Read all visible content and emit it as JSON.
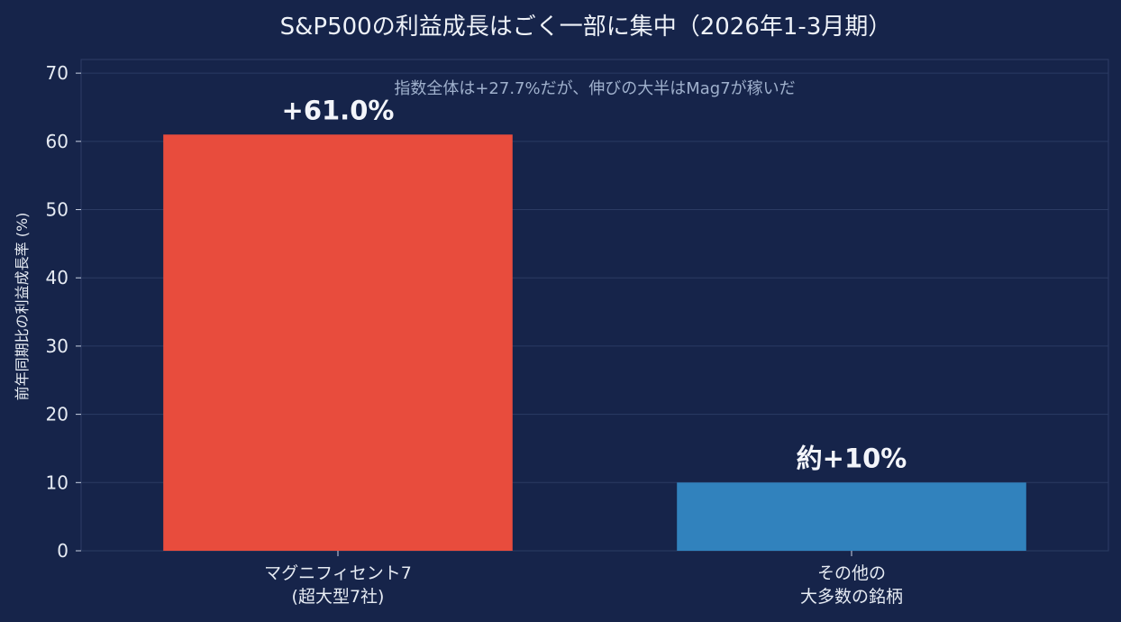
{
  "chart_data": {
    "type": "bar",
    "title": "S&P500の利益成長はごく一部に集中（2026年1-3月期）",
    "subtitle": "指数全体は+27.7%だが、伸びの大半はMag7が稼いだ",
    "ylabel": "前年同期比の利益成長率 (%)",
    "xlabel": "",
    "ylim": [
      0,
      72
    ],
    "yticks": [
      0,
      10,
      20,
      30,
      40,
      50,
      60,
      70
    ],
    "grid": true,
    "categories": [
      [
        "マグニフィセント7",
        "(超大型7社)"
      ],
      [
        "その他の",
        "大多数の銘柄"
      ]
    ],
    "values": [
      61.0,
      10
    ],
    "data_labels": [
      "+61.0%",
      "約+10%"
    ],
    "colors": [
      "#e84c3d",
      "#3182bd"
    ],
    "background": "#16244a",
    "grid_color": "#2b3b63"
  }
}
